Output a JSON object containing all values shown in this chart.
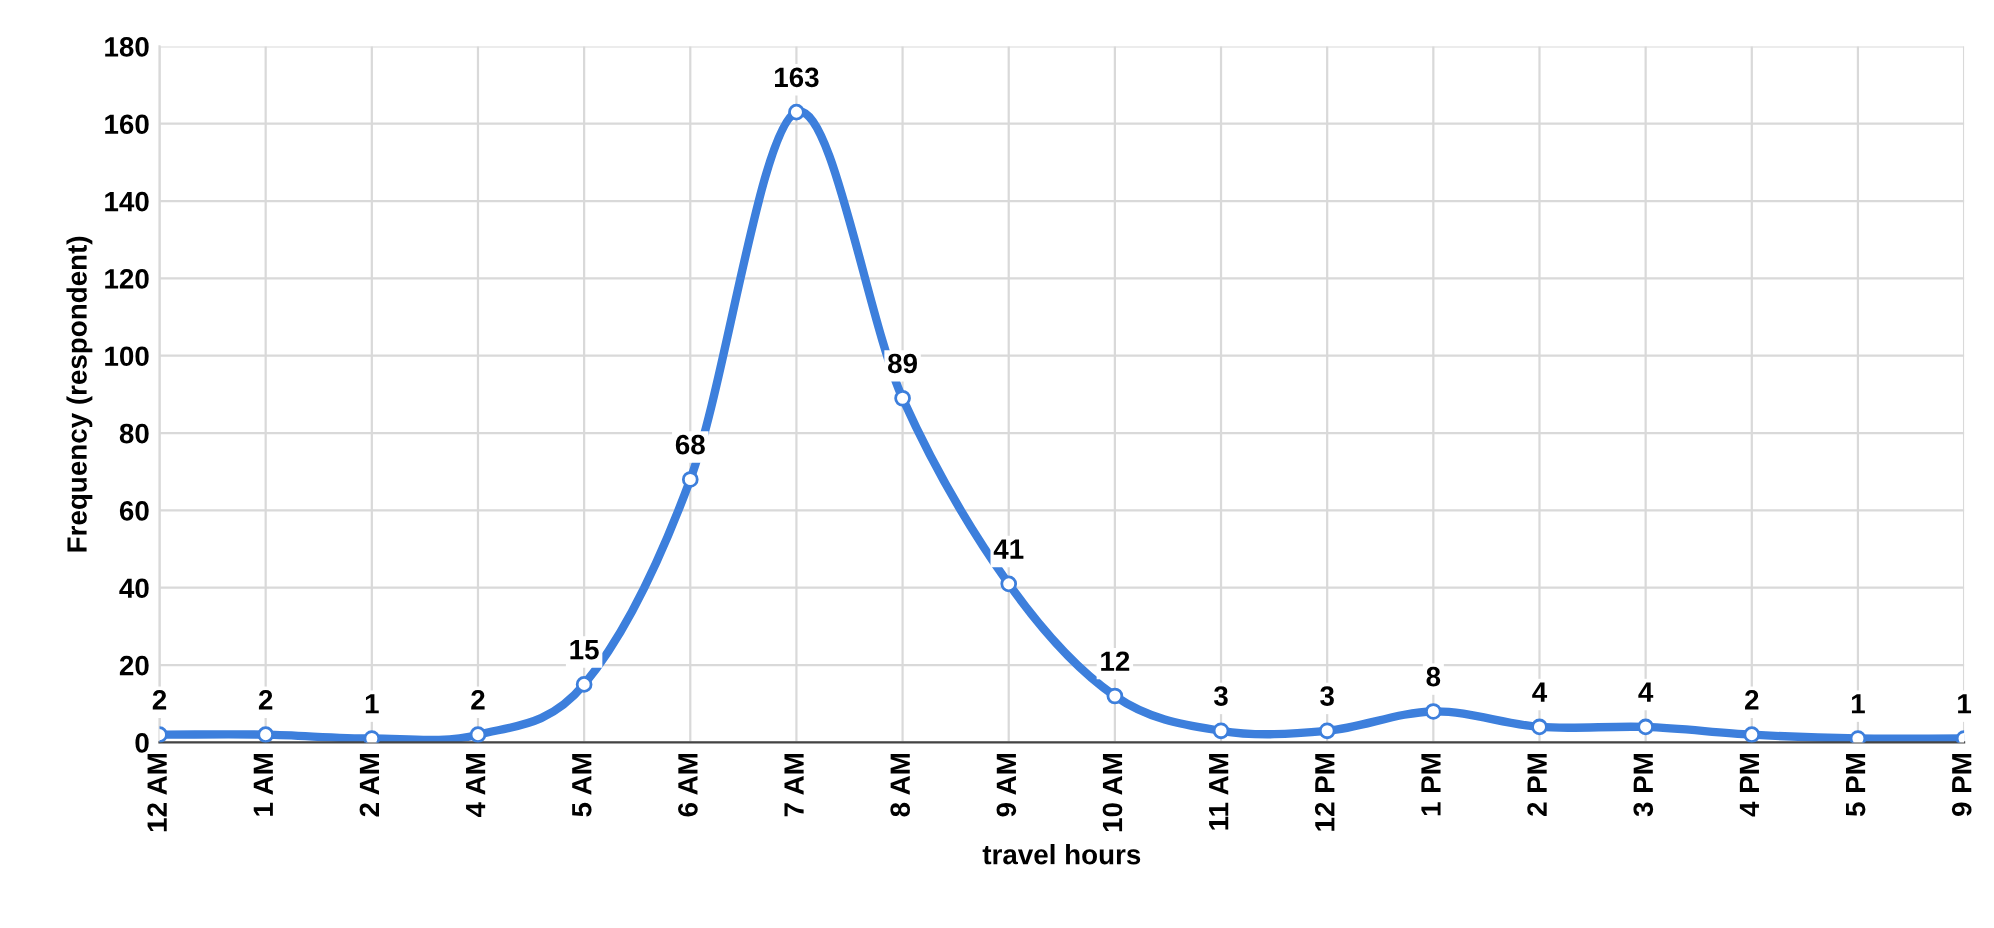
{
  "chart_data": {
    "type": "line",
    "xlabel": "travel hours",
    "ylabel": "Frequency (respondent)",
    "categories": [
      "12 AM",
      "1 AM",
      "2 AM",
      "4 AM",
      "5 AM",
      "6 AM",
      "7 AM",
      "8 AM",
      "9 AM",
      "10 AM",
      "11 AM",
      "12 PM",
      "1 PM",
      "2 PM",
      "3 PM",
      "4 PM",
      "5 PM",
      "9 PM"
    ],
    "series": [
      {
        "color": "#3d7fdc",
        "values": [
          2,
          2,
          1,
          2,
          15,
          68,
          163,
          89,
          41,
          12,
          3,
          3,
          8,
          4,
          4,
          2,
          1,
          1
        ]
      }
    ],
    "ylim": [
      0,
      180
    ],
    "yticks": [
      0,
      20,
      40,
      60,
      80,
      100,
      120,
      140,
      160,
      180
    ],
    "grid": true,
    "marker": "circle",
    "line_style": "solid",
    "data_labels": true
  }
}
